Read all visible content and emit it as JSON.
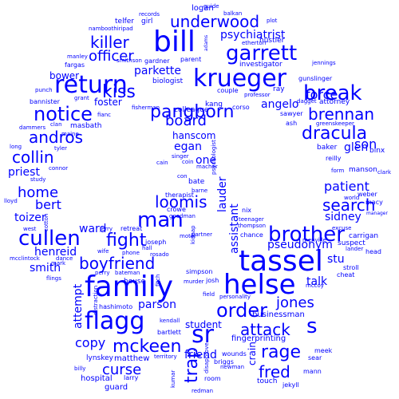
{
  "word_color": "#0000ff",
  "background_color": "#ffffff",
  "words": [
    {
      "text": "tassel"
    },
    {
      "text": "family"
    },
    {
      "text": "bill"
    },
    {
      "text": "helse"
    },
    {
      "text": "return"
    },
    {
      "text": "krueger"
    },
    {
      "text": "garrett"
    },
    {
      "text": "flagg"
    },
    {
      "text": "brother"
    },
    {
      "text": "break"
    },
    {
      "text": "man"
    },
    {
      "text": "cullen"
    },
    {
      "text": "sr"
    },
    {
      "text": "pangborn"
    },
    {
      "text": "notice"
    },
    {
      "text": "underwood"
    },
    {
      "text": "kiss"
    },
    {
      "text": "killer"
    },
    {
      "text": "mckeen"
    },
    {
      "text": "order"
    },
    {
      "text": "dracula"
    },
    {
      "text": "rage"
    },
    {
      "text": "search"
    },
    {
      "text": "andros"
    },
    {
      "text": "fight"
    },
    {
      "text": "brennan"
    },
    {
      "text": "boyfriend"
    },
    {
      "text": "attack"
    },
    {
      "text": "home"
    },
    {
      "text": "collin"
    },
    {
      "text": "loomis"
    },
    {
      "text": "jones"
    },
    {
      "text": "curse"
    },
    {
      "text": "fred"
    },
    {
      "text": "board"
    },
    {
      "text": "force"
    },
    {
      "text": "son"
    },
    {
      "text": "officer"
    },
    {
      "text": "trap"
    },
    {
      "text": "bert"
    },
    {
      "text": "patient"
    },
    {
      "text": "copy"
    },
    {
      "text": "s"
    },
    {
      "text": "parkette"
    },
    {
      "text": "psychiatrist"
    },
    {
      "text": "glen"
    },
    {
      "text": "sidney"
    },
    {
      "text": "pseudonym"
    },
    {
      "text": "priest"
    },
    {
      "text": "ward"
    },
    {
      "text": "friend"
    },
    {
      "text": "toizer"
    },
    {
      "text": "henreid"
    },
    {
      "text": "smith"
    },
    {
      "text": "hanscom"
    },
    {
      "text": "egan"
    },
    {
      "text": "one"
    },
    {
      "text": "angelo"
    },
    {
      "text": "stu"
    },
    {
      "text": "parson"
    },
    {
      "text": "attempt"
    },
    {
      "text": "student"
    },
    {
      "text": "talk"
    },
    {
      "text": "assistant"
    },
    {
      "text": "lauder"
    },
    {
      "text": "crain"
    },
    {
      "text": "bower"
    },
    {
      "text": "foster"
    },
    {
      "text": "matthew"
    },
    {
      "text": "businessman"
    },
    {
      "text": "fingerprinting"
    },
    {
      "text": "guard"
    },
    {
      "text": "hospital"
    },
    {
      "text": "logan"
    },
    {
      "text": "telfer"
    },
    {
      "text": "girl"
    },
    {
      "text": "namboothiripad"
    },
    {
      "text": "hustler"
    },
    {
      "text": "investigator"
    },
    {
      "text": "ray"
    },
    {
      "text": "gunslinger"
    },
    {
      "text": "biologist"
    },
    {
      "text": "couple"
    },
    {
      "text": "professor"
    },
    {
      "text": "attorney"
    },
    {
      "text": "dagget"
    },
    {
      "text": "kang"
    },
    {
      "text": "colleague"
    },
    {
      "text": "corso"
    },
    {
      "text": "sawyer"
    },
    {
      "text": "ash"
    },
    {
      "text": "greenskeeper"
    },
    {
      "text": "baker"
    },
    {
      "text": "binx"
    },
    {
      "text": "reilly"
    },
    {
      "text": "form"
    },
    {
      "text": "manson"
    },
    {
      "text": "clark"
    },
    {
      "text": "weber"
    },
    {
      "text": "world"
    },
    {
      "text": "macy"
    },
    {
      "text": "carrigan"
    },
    {
      "text": "suspect"
    },
    {
      "text": "lander"
    },
    {
      "text": "head"
    },
    {
      "text": "stroll"
    },
    {
      "text": "cheat"
    },
    {
      "text": "mccoy"
    },
    {
      "text": "meek"
    },
    {
      "text": "sear"
    },
    {
      "text": "mann"
    },
    {
      "text": "touch"
    },
    {
      "text": "jekyll"
    },
    {
      "text": "lynskey"
    },
    {
      "text": "larry"
    },
    {
      "text": "billy"
    },
    {
      "text": "kumar"
    },
    {
      "text": "redman"
    },
    {
      "text": "room"
    },
    {
      "text": "briggs"
    },
    {
      "text": "newman"
    },
    {
      "text": "territory"
    },
    {
      "text": "bartlett"
    },
    {
      "text": "kendall"
    },
    {
      "text": "hashimoto"
    },
    {
      "text": "distraction"
    },
    {
      "text": "house"
    },
    {
      "text": "perry"
    },
    {
      "text": "bateman"
    },
    {
      "text": "murder"
    },
    {
      "text": "josh"
    },
    {
      "text": "simpson"
    },
    {
      "text": "field"
    },
    {
      "text": "personality"
    },
    {
      "text": "wounds"
    },
    {
      "text": "disapprove"
    },
    {
      "text": "therapist"
    },
    {
      "text": "crowe"
    },
    {
      "text": "goodman"
    },
    {
      "text": "bate"
    },
    {
      "text": "barne"
    },
    {
      "text": "motel"
    },
    {
      "text": "partner"
    },
    {
      "text": "singer"
    },
    {
      "text": "coin"
    },
    {
      "text": "cain"
    },
    {
      "text": "con"
    },
    {
      "text": "macher"
    },
    {
      "text": "psychologist"
    },
    {
      "text": "nix"
    },
    {
      "text": "teenager"
    },
    {
      "text": "thompson"
    },
    {
      "text": "chance"
    },
    {
      "text": "menville"
    },
    {
      "text": "kidnap"
    },
    {
      "text": "fitch"
    },
    {
      "text": "retreat"
    },
    {
      "text": "joseph"
    },
    {
      "text": "hall"
    },
    {
      "text": "rosado"
    },
    {
      "text": "phone"
    },
    {
      "text": "wife"
    },
    {
      "text": "jerry"
    },
    {
      "text": "dance"
    },
    {
      "text": "mcclintock"
    },
    {
      "text": "mark"
    },
    {
      "text": "flings"
    },
    {
      "text": "west"
    },
    {
      "text": "cotton"
    },
    {
      "text": "lloyd"
    },
    {
      "text": "study"
    },
    {
      "text": "connor"
    },
    {
      "text": "tyler"
    },
    {
      "text": "long"
    },
    {
      "text": "maine"
    },
    {
      "text": "dammers"
    },
    {
      "text": "clan"
    },
    {
      "text": "masbath"
    },
    {
      "text": "fianc"
    },
    {
      "text": "bannister"
    },
    {
      "text": "punch"
    },
    {
      "text": "grant"
    },
    {
      "text": "fisherman"
    },
    {
      "text": "fargas"
    },
    {
      "text": "manley"
    },
    {
      "text": "smithson"
    },
    {
      "text": "gardner"
    },
    {
      "text": "parent"
    },
    {
      "text": "adams"
    },
    {
      "text": "etherton"
    },
    {
      "text": "plot"
    },
    {
      "text": "jennings"
    },
    {
      "text": "excuse"
    },
    {
      "text": "manager"
    },
    {
      "text": "records"
    },
    {
      "text": "guide"
    },
    {
      "text": "balkan"
    }
  ]
}
